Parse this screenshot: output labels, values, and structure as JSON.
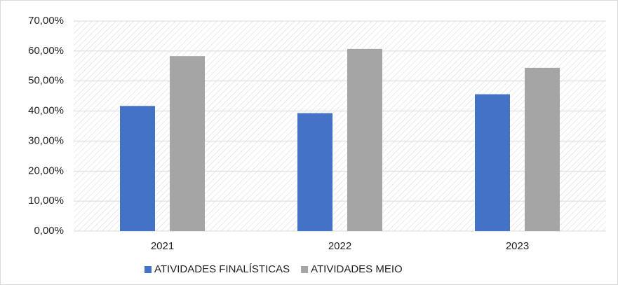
{
  "chart_data": {
    "type": "bar",
    "categories": [
      "2021",
      "2022",
      "2023"
    ],
    "series": [
      {
        "name": "ATIVIDADES FINALÍSTICAS",
        "color": "#4472c4",
        "values": [
          41.7,
          39.3,
          45.6
        ]
      },
      {
        "name": "ATIVIDADES MEIO",
        "color": "#a5a5a5",
        "values": [
          58.3,
          60.7,
          54.4
        ]
      }
    ],
    "ylim": [
      0,
      70
    ],
    "yticks": [
      {
        "value": 0,
        "label": "0,00%"
      },
      {
        "value": 10,
        "label": "10,00%"
      },
      {
        "value": 20,
        "label": "20,00%"
      },
      {
        "value": 30,
        "label": "30,00%"
      },
      {
        "value": 40,
        "label": "40,00%"
      },
      {
        "value": 50,
        "label": "50,00%"
      },
      {
        "value": 60,
        "label": "60,00%"
      },
      {
        "value": 70,
        "label": "70,00%"
      }
    ],
    "grid": true,
    "legend": "bottom"
  }
}
